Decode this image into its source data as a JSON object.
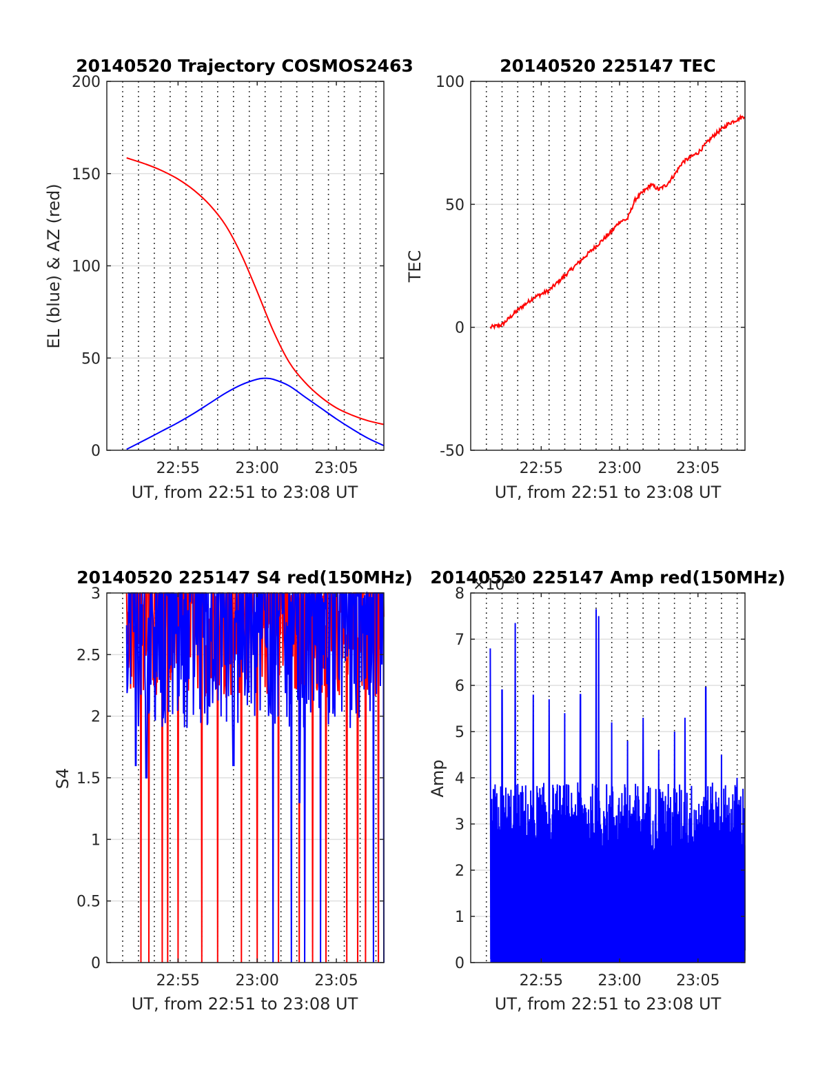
{
  "colors": {
    "red": "#ff0000",
    "blue": "#0000ff",
    "axis": "#262626",
    "grid": "#dfdfdf",
    "vline": "#000000"
  },
  "chart_data": [
    {
      "type": "line",
      "title": "20140520 Trajectory COSMOS2463",
      "xlabel": "UT, from 22:51 to 23:08 UT",
      "ylabel": "EL (blue) & AZ (red)",
      "ylim": [
        0,
        200
      ],
      "xlim_minutes": [
        "22:50:30",
        "23:08:00"
      ],
      "yticks": [
        0,
        50,
        100,
        150,
        200
      ],
      "ytick_labels": [
        "0",
        "50",
        "100",
        "150",
        "200"
      ],
      "xtick_labels": [
        "22:55",
        "23:00",
        "23:05"
      ],
      "grid": true,
      "series": [
        {
          "color": "red",
          "x": [
            "22:51:45",
            "22:53:00",
            "22:54:00",
            "22:55:00",
            "22:56:00",
            "22:57:00",
            "22:58:00",
            "22:59:00",
            "23:00:00",
            "23:01:00",
            "23:02:00",
            "23:03:00",
            "23:04:00",
            "23:05:00",
            "23:06:00",
            "23:07:00",
            "23:08:00"
          ],
          "values": [
            158.5,
            155,
            151.5,
            147,
            141,
            133,
            122,
            106,
            86,
            65,
            48,
            37,
            29,
            23,
            19,
            16,
            14
          ]
        },
        {
          "color": "blue",
          "x": [
            "22:51:45",
            "22:53:00",
            "22:54:00",
            "22:55:00",
            "22:56:00",
            "22:57:00",
            "22:58:00",
            "22:59:00",
            "23:00:00",
            "23:00:30",
            "23:01:00",
            "23:02:00",
            "23:03:00",
            "23:04:00",
            "23:05:00",
            "23:06:00",
            "23:07:00",
            "23:08:00"
          ],
          "values": [
            0.5,
            6,
            10.5,
            15,
            20,
            25.5,
            31,
            35.5,
            38.5,
            39,
            38.5,
            35,
            29,
            23,
            17,
            11.5,
            6.5,
            2.5
          ]
        }
      ]
    },
    {
      "type": "line",
      "title": "20140520 225147 TEC",
      "xlabel": "UT, from 22:51 to 23:08 UT",
      "ylabel": "TEC",
      "ylim": [
        -50,
        100
      ],
      "yticks": [
        -50,
        0,
        50,
        100
      ],
      "ytick_labels": [
        "-50",
        "0",
        "50",
        "100"
      ],
      "xtick_labels": [
        "22:55",
        "23:00",
        "23:05"
      ],
      "grid": true,
      "series": [
        {
          "color": "red",
          "x": [
            "22:51:45",
            "22:52:30",
            "22:53:30",
            "22:54:30",
            "22:55:30",
            "22:56:30",
            "22:57:30",
            "22:58:30",
            "22:59:30",
            "23:00:00",
            "23:00:30",
            "23:01:00",
            "23:01:30",
            "23:02:00",
            "23:02:30",
            "23:03:00",
            "23:03:30",
            "23:04:00",
            "23:05:00",
            "23:06:00",
            "23:07:00",
            "23:08:00"
          ],
          "values": [
            0,
            1,
            7,
            12,
            15,
            21,
            27,
            33,
            39,
            43,
            44,
            52,
            55,
            58,
            56,
            58,
            62,
            67,
            71,
            78,
            83,
            86
          ]
        }
      ]
    },
    {
      "type": "line",
      "title": "20140520 225147 S4 red(150MHz)",
      "xlabel": "UT, from 22:51 to 23:08 UT",
      "ylabel": "S4",
      "ylim": [
        0,
        3
      ],
      "yticks": [
        0,
        0.5,
        1,
        1.5,
        2,
        2.5,
        3
      ],
      "ytick_labels": [
        "0",
        "0.5",
        "1",
        "1.5",
        "2",
        "2.5",
        "3"
      ],
      "xtick_labels": [
        "22:55",
        "23:00",
        "23:05"
      ],
      "grid": true,
      "series": [
        {
          "color": "red",
          "note_values": "noisy; typical range 2.0-3.0 with drops to 0",
          "dropouts_to_zero": [
            "22:52:40",
            "22:53:10",
            "22:54:00",
            "22:54:20",
            "22:55:00",
            "22:56:30",
            "22:57:30",
            "22:59:00",
            "23:00:00",
            "23:01:20",
            "23:02:40",
            "23:03:30",
            "23:04:20",
            "23:05:40",
            "23:06:20",
            "23:06:50",
            "23:07:40"
          ]
        },
        {
          "color": "blue",
          "note_values": "noisy; typical range 1.5-3.0 with drops to 0",
          "dropouts_to_zero": [
            "23:01:00",
            "23:02:10",
            "23:03:00",
            "23:04:00",
            "23:07:20",
            "23:08:00"
          ],
          "dips": [
            [
              "22:52:20",
              1.6
            ],
            [
              "22:53:00",
              1.5
            ],
            [
              "23:02:40",
              1.3
            ],
            [
              "22:58:30",
              1.6
            ]
          ]
        }
      ]
    },
    {
      "type": "line",
      "title": "20140520 225147 Amp red(150MHz)",
      "xlabel": "UT, from 22:51 to 23:08 UT",
      "ylabel": "Amp",
      "ylim": [
        0,
        8
      ],
      "exponent_label": "×10",
      "exponent_power": "-3",
      "yticks": [
        0,
        1,
        2,
        3,
        4,
        5,
        6,
        7,
        8
      ],
      "ytick_labels": [
        "0",
        "1",
        "2",
        "3",
        "4",
        "5",
        "6",
        "7",
        "8"
      ],
      "xtick_labels": [
        "22:55",
        "23:00",
        "23:05"
      ],
      "grid": true,
      "series": [
        {
          "color": "blue",
          "note_values": "noisy envelope; filled from 0 to ~3.5",
          "peaks": [
            [
              "22:51:45",
              6.8
            ],
            [
              "22:52:30",
              5.9
            ],
            [
              "22:53:20",
              7.35
            ],
            [
              "22:54:30",
              5.8
            ],
            [
              "22:55:30",
              5.7
            ],
            [
              "22:56:30",
              5.4
            ],
            [
              "22:57:30",
              5.8
            ],
            [
              "22:58:30",
              7.65
            ],
            [
              "22:58:40",
              7.5
            ],
            [
              "22:59:30",
              5.2
            ],
            [
              "23:00:30",
              4.8
            ],
            [
              "23:01:30",
              5.3
            ],
            [
              "23:02:30",
              4.6
            ],
            [
              "23:03:30",
              5.0
            ],
            [
              "23:04:10",
              5.3
            ],
            [
              "23:05:30",
              5.95
            ],
            [
              "23:06:30",
              4.5
            ],
            [
              "23:07:30",
              4.0
            ]
          ]
        }
      ]
    }
  ]
}
